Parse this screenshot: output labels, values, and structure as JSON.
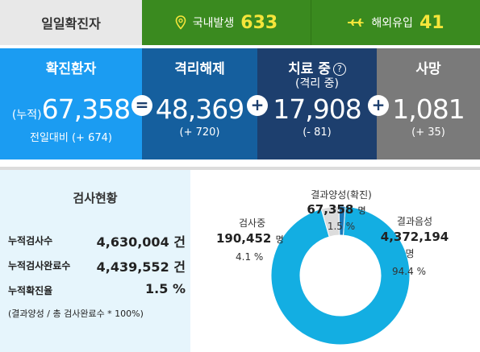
{
  "topbar": {
    "title": "일일확진자",
    "domestic_label": "국내발생",
    "domestic_value": "633",
    "abroad_label": "해외유입",
    "abroad_value": "41",
    "domestic_icon": "location-pin-icon",
    "abroad_icon": "airplane-icon"
  },
  "stats": {
    "confirmed": {
      "label": "확진환자",
      "prefix": "(누적)",
      "value": "67,358",
      "delta": "전일대비 (+ 674)"
    },
    "released": {
      "label": "격리해제",
      "value": "48,369",
      "delta": "(+ 720)"
    },
    "treating": {
      "label": "치료 중",
      "help": "?",
      "sub": "(격리 중)",
      "value": "17,908",
      "delta": "(- 81)"
    },
    "deaths": {
      "label": "사망",
      "value": "1,081",
      "delta": "(+ 35)"
    },
    "op_equals": "=",
    "op_plus": "+"
  },
  "testing": {
    "title": "검사현황",
    "rows": [
      {
        "label": "누적검사수",
        "value": "4,630,004 건"
      },
      {
        "label": "누적검사완료수",
        "value": "4,439,552 건"
      },
      {
        "label": "누적확진율",
        "value": "1.5 %"
      }
    ],
    "note": "(결과양성 / 총 검사완료수 * 100%)"
  },
  "chart_data": {
    "type": "pie",
    "categories": [
      "결과음성",
      "검사중",
      "결과양성(확진)"
    ],
    "values": [
      4372194,
      190452,
      67358
    ],
    "percent": [
      94.4,
      4.1,
      1.5
    ],
    "labels": {
      "positive": {
        "name": "결과양성(확진)",
        "value": "67,358",
        "unit": "명",
        "pct": "1.5 %"
      },
      "pending": {
        "name": "검사중",
        "value": "190,452",
        "unit": "명",
        "pct": "4.1 %"
      },
      "negative": {
        "name": "결과음성",
        "value": "4,372,194",
        "unit": "명",
        "pct": "94.4 %"
      }
    },
    "colors": {
      "negative": "#13aee2",
      "pending": "#dcdcdc",
      "positive": "#1b78b8"
    }
  }
}
